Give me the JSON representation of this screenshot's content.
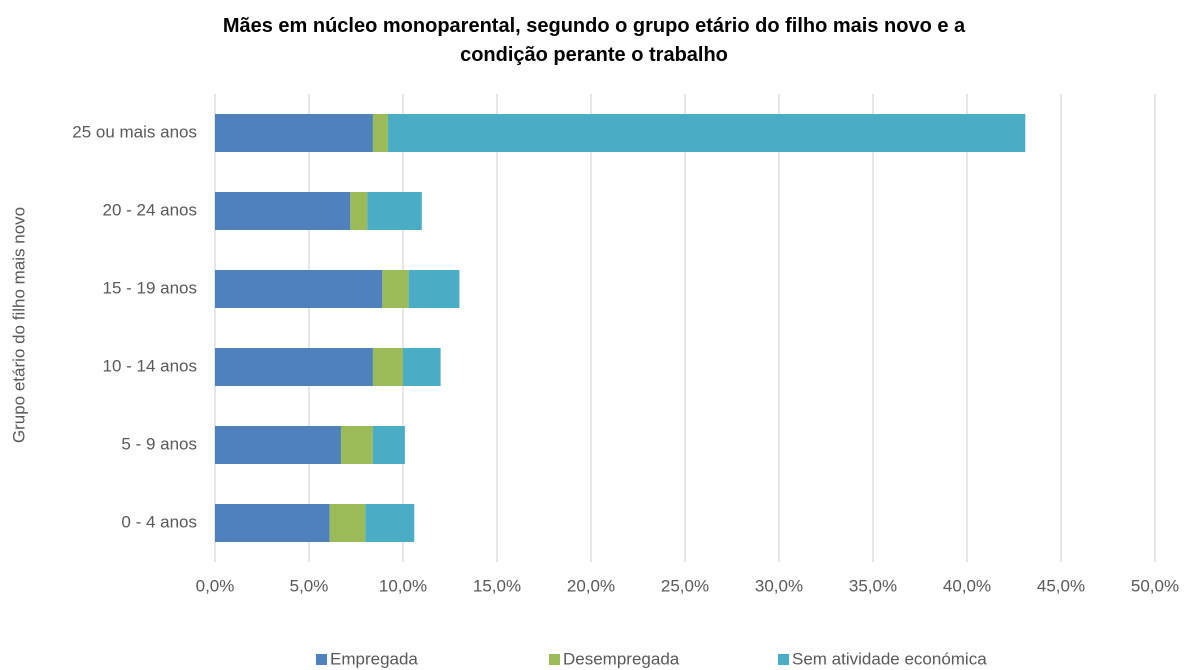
{
  "chart_data": {
    "type": "stacked_barh",
    "title": "Mães em núcleo monoparental, segundo o grupo etário do filho mais novo e a condição perante o trabalho",
    "y_label": "Grupo etário do filho mais novo",
    "categories": [
      "25 ou mais anos",
      "20 - 24 anos",
      "15 - 19 anos",
      "10 - 14 anos",
      "5 - 9 anos",
      "0 - 4 anos"
    ],
    "series": [
      {
        "name": "Empregada",
        "color": "#4f81bd",
        "values": [
          8.4,
          7.2,
          8.9,
          8.4,
          6.7,
          6.1
        ]
      },
      {
        "name": "Desempregada",
        "color": "#9bbb59",
        "values": [
          0.8,
          0.9,
          1.4,
          1.6,
          1.7,
          1.9
        ]
      },
      {
        "name": "Sem atividade económica",
        "color": "#4bacc6",
        "values": [
          33.9,
          2.9,
          2.7,
          2.0,
          1.7,
          2.6
        ]
      }
    ],
    "xlim": [
      0,
      50
    ],
    "xticks": [
      {
        "value": 0,
        "label": "0,0%"
      },
      {
        "value": 5,
        "label": "5,0%"
      },
      {
        "value": 10,
        "label": "10,0%"
      },
      {
        "value": 15,
        "label": "15,0%"
      },
      {
        "value": 20,
        "label": "20,0%"
      },
      {
        "value": 25,
        "label": "25,0%"
      },
      {
        "value": 30,
        "label": "30,0%"
      },
      {
        "value": 35,
        "label": "35,0%"
      },
      {
        "value": 40,
        "label": "40,0%"
      },
      {
        "value": 45,
        "label": "45,0%"
      },
      {
        "value": 50,
        "label": "50,0%"
      }
    ],
    "grid": true,
    "legend": "bottom"
  }
}
